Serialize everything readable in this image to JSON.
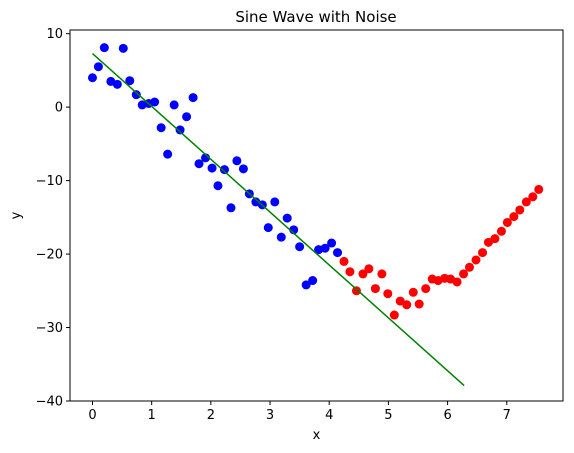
{
  "chart_data": {
    "type": "scatter",
    "title": "Sine Wave with Noise",
    "xlabel": "x",
    "ylabel": "y",
    "xlim": [
      -0.38,
      7.95
    ],
    "ylim": [
      -40,
      10.5
    ],
    "xticks": [
      0,
      1,
      2,
      3,
      4,
      5,
      6,
      7
    ],
    "yticks": [
      -40,
      -30,
      -20,
      -10,
      0,
      10
    ],
    "ytick_labels": [
      "−40",
      "−30",
      "−20",
      "−10",
      "0",
      "10"
    ],
    "grid": false,
    "series": [
      {
        "kind": "scatter",
        "color": "#0000ff",
        "x": [
          0.0,
          0.1,
          0.2,
          0.31,
          0.42,
          0.52,
          0.63,
          0.74,
          0.84,
          0.95,
          1.05,
          1.16,
          1.27,
          1.38,
          1.48,
          1.59,
          1.7,
          1.8,
          1.91,
          2.02,
          2.12,
          2.23,
          2.34,
          2.44,
          2.55,
          2.65,
          2.76,
          2.87,
          2.97,
          3.08,
          3.19,
          3.29,
          3.4,
          3.5,
          3.61,
          3.72,
          3.82,
          3.93,
          4.04,
          4.14
        ],
        "y": [
          4.0,
          5.5,
          8.1,
          3.5,
          3.1,
          8.0,
          3.6,
          1.7,
          0.3,
          0.5,
          0.7,
          -2.8,
          -6.4,
          0.3,
          -3.1,
          -1.3,
          1.3,
          -7.7,
          -6.9,
          -8.3,
          -10.7,
          -8.5,
          -13.7,
          -7.3,
          -8.4,
          -11.8,
          -12.9,
          -13.3,
          -16.4,
          -12.9,
          -17.7,
          -15.1,
          -16.7,
          -19.0,
          -24.2,
          -23.6,
          -19.4,
          -19.2,
          -18.5,
          -19.8
        ]
      },
      {
        "kind": "scatter",
        "color": "#ff0000",
        "x": [
          4.25,
          4.35,
          4.46,
          4.57,
          4.67,
          4.78,
          4.89,
          4.99,
          5.1,
          5.2,
          5.31,
          5.42,
          5.52,
          5.63,
          5.74,
          5.84,
          5.95,
          6.05,
          6.16,
          6.27,
          6.37,
          6.48,
          6.59,
          6.69,
          6.8,
          6.91,
          7.01,
          7.12,
          7.22,
          7.33,
          7.44,
          7.54
        ],
        "y": [
          -21.0,
          -22.4,
          -25.0,
          -22.7,
          -22.0,
          -24.7,
          -22.7,
          -25.4,
          -28.3,
          -26.4,
          -26.9,
          -25.2,
          -26.8,
          -24.7,
          -23.4,
          -23.6,
          -23.3,
          -23.4,
          -23.8,
          -22.7,
          -21.8,
          -20.8,
          -19.8,
          -18.4,
          -17.9,
          -16.9,
          -15.7,
          -14.9,
          -14.0,
          -12.9,
          -12.2,
          -11.2
        ]
      },
      {
        "kind": "line",
        "color": "#008000",
        "x": [
          0.0,
          6.28
        ],
        "y": [
          7.3,
          -37.9
        ]
      }
    ]
  }
}
